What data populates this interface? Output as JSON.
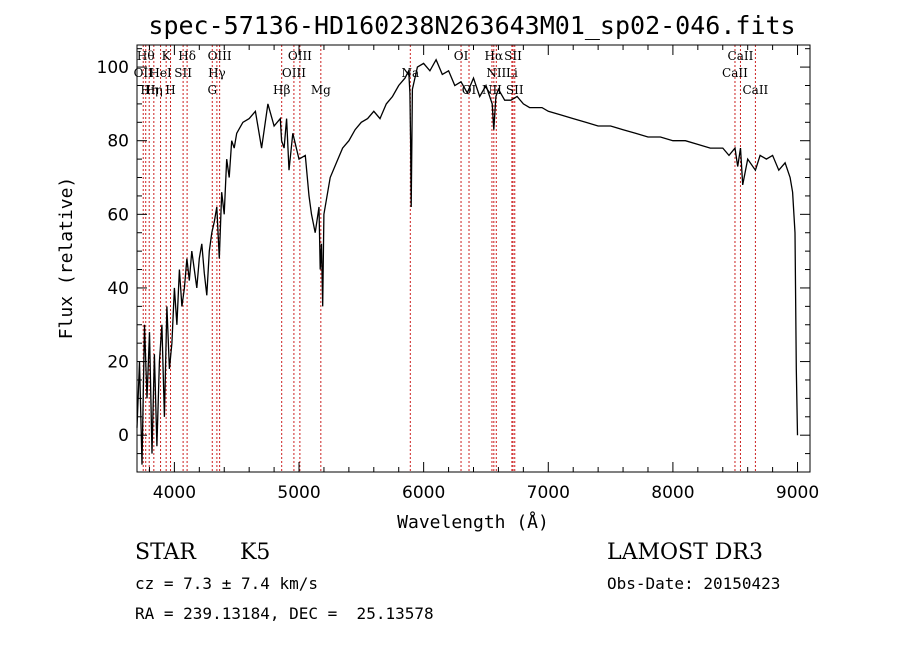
{
  "chart_data": {
    "type": "line",
    "title": "spec-57136-HD160238N263643M01_sp02-046.fits",
    "xlabel": "Wavelength (Å)",
    "ylabel": "Flux (relative)",
    "xlim": [
      3700,
      9100
    ],
    "ylim": [
      -10,
      106
    ],
    "xticks": [
      4000,
      5000,
      6000,
      7000,
      8000,
      9000
    ],
    "yticks": [
      0,
      20,
      40,
      60,
      80,
      100
    ],
    "series": [
      {
        "name": "flux",
        "x": [
          3700,
          3720,
          3740,
          3760,
          3780,
          3800,
          3820,
          3840,
          3860,
          3880,
          3900,
          3920,
          3940,
          3960,
          3980,
          4000,
          4020,
          4040,
          4060,
          4080,
          4100,
          4120,
          4140,
          4160,
          4180,
          4200,
          4220,
          4240,
          4260,
          4280,
          4300,
          4320,
          4340,
          4360,
          4380,
          4400,
          4420,
          4440,
          4460,
          4480,
          4500,
          4550,
          4600,
          4650,
          4700,
          4750,
          4800,
          4850,
          4860,
          4880,
          4900,
          4920,
          4950,
          5000,
          5050,
          5080,
          5100,
          5130,
          5160,
          5170,
          5180,
          5190,
          5200,
          5250,
          5300,
          5350,
          5400,
          5450,
          5500,
          5550,
          5600,
          5650,
          5700,
          5750,
          5800,
          5850,
          5880,
          5890,
          5895,
          5900,
          5910,
          5950,
          6000,
          6050,
          6100,
          6150,
          6200,
          6250,
          6300,
          6350,
          6400,
          6450,
          6500,
          6550,
          6563,
          6580,
          6600,
          6650,
          6700,
          6750,
          6800,
          6850,
          6900,
          6950,
          7000,
          7100,
          7200,
          7300,
          7400,
          7500,
          7600,
          7700,
          7800,
          7900,
          8000,
          8100,
          8200,
          8300,
          8400,
          8450,
          8498,
          8520,
          8542,
          8560,
          8600,
          8662,
          8700,
          8750,
          8800,
          8850,
          8900,
          8940,
          8960,
          8980,
          8990,
          9000
        ],
        "values": [
          2,
          20,
          -8,
          30,
          10,
          28,
          -5,
          22,
          -3,
          20,
          30,
          5,
          35,
          18,
          25,
          40,
          30,
          45,
          35,
          40,
          48,
          42,
          50,
          45,
          40,
          48,
          52,
          44,
          38,
          50,
          55,
          58,
          62,
          48,
          66,
          60,
          75,
          70,
          80,
          78,
          82,
          85,
          86,
          88,
          78,
          90,
          84,
          86,
          80,
          78,
          86,
          72,
          82,
          75,
          76,
          65,
          60,
          55,
          62,
          45,
          52,
          35,
          60,
          70,
          74,
          78,
          80,
          83,
          85,
          86,
          88,
          86,
          90,
          92,
          95,
          97,
          99,
          93,
          80,
          62,
          94,
          100,
          101,
          99,
          102,
          98,
          99,
          95,
          96,
          93,
          97,
          92,
          95,
          90,
          83,
          92,
          94,
          91,
          91,
          92,
          90,
          89,
          89,
          89,
          88,
          87,
          86,
          85,
          84,
          84,
          83,
          82,
          81,
          81,
          80,
          80,
          79,
          78,
          78,
          76,
          78,
          73,
          78,
          68,
          75,
          72,
          76,
          75,
          76,
          72,
          74,
          70,
          66,
          55,
          18,
          0
        ]
      }
    ],
    "lines": [
      {
        "wl": 3750,
        "label": "OII",
        "row": 1
      },
      {
        "wl": 3770,
        "label": "Hθ",
        "row": 0
      },
      {
        "wl": 3798,
        "label": "Hη",
        "row": 2
      },
      {
        "wl": 3835,
        "label": "Hη",
        "row": 2
      },
      {
        "wl": 3889,
        "label": "HeI",
        "row": 1
      },
      {
        "wl": 3934,
        "label": "K",
        "row": 0
      },
      {
        "wl": 3969,
        "label": "H",
        "row": 2
      },
      {
        "wl": 4070,
        "label": "SII",
        "row": 1
      },
      {
        "wl": 4102,
        "label": "Hδ",
        "row": 0
      },
      {
        "wl": 4304,
        "label": "G",
        "row": 2
      },
      {
        "wl": 4341,
        "label": "Hγ",
        "row": 1
      },
      {
        "wl": 4363,
        "label": "OIII",
        "row": 0
      },
      {
        "wl": 4861,
        "label": "Hβ",
        "row": 2
      },
      {
        "wl": 4959,
        "label": "OIII",
        "row": 1
      },
      {
        "wl": 5007,
        "label": "OIII",
        "row": 0
      },
      {
        "wl": 5175,
        "label": "Mg",
        "row": 2
      },
      {
        "wl": 5893,
        "label": "Na",
        "row": 1
      },
      {
        "wl": 6300,
        "label": "OI",
        "row": 0
      },
      {
        "wl": 6364,
        "label": "OI",
        "row": 2
      },
      {
        "wl": 6548,
        "label": "NII",
        "row": 2
      },
      {
        "wl": 6563,
        "label": "Hα",
        "row": 0
      },
      {
        "wl": 6583,
        "label": "NII",
        "row": 1
      },
      {
        "wl": 6708,
        "label": "Li",
        "row": 1
      },
      {
        "wl": 6717,
        "label": "SII",
        "row": 0
      },
      {
        "wl": 6731,
        "label": "SII",
        "row": 2
      },
      {
        "wl": 8498,
        "label": "CaII",
        "row": 1
      },
      {
        "wl": 8542,
        "label": "CaII",
        "row": 0
      },
      {
        "wl": 8662,
        "label": "CaII",
        "row": 2
      }
    ]
  },
  "info": {
    "class": "STAR",
    "subclass": "K5",
    "survey": "LAMOST DR3",
    "cz": "cz = 7.3 ± 7.4 km/s",
    "obs_date": "Obs-Date: 20150423",
    "radec": "RA = 239.13184, DEC =  25.13578"
  }
}
